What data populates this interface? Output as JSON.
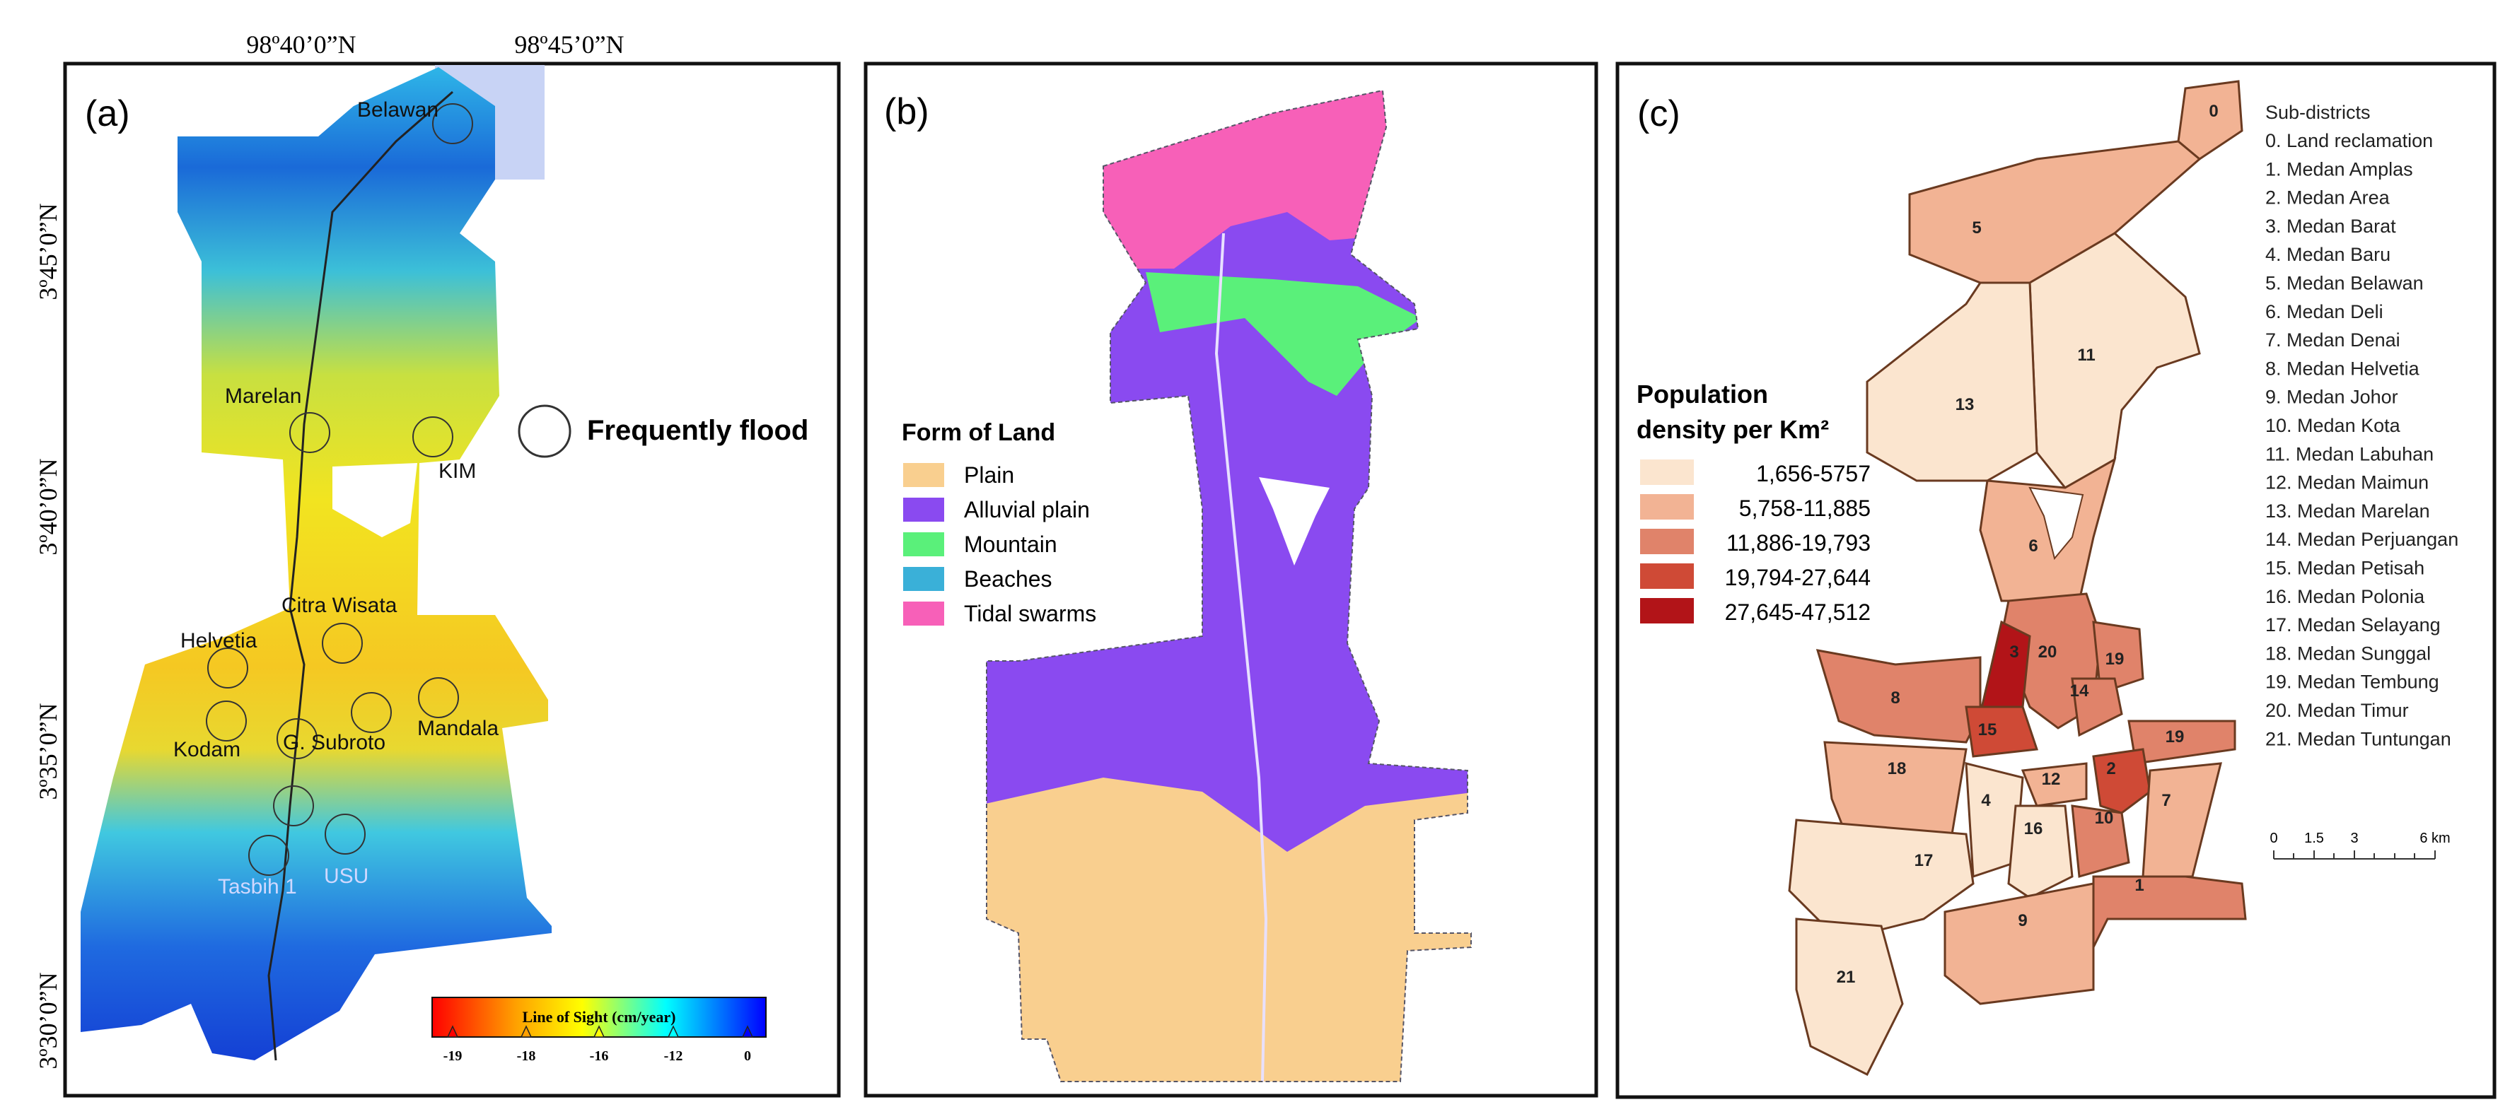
{
  "panel_a": {
    "label": "(a)",
    "lon_labels": [
      "98º40’0”N",
      "98º45’0”N"
    ],
    "lat_labels": [
      "3º45’0”N",
      "3º40’0”N",
      "3º35’0”N",
      "3º30’0”N"
    ],
    "places": [
      "Belawan",
      "Marelan",
      "KIM",
      "Citra Wisata",
      "Helvetia",
      "Kodam",
      "G. Subroto",
      "Mandala",
      "Tasbih 1",
      "USU"
    ],
    "flood_legend": "Frequently flood",
    "colorbar": {
      "title": "Line of Sight (cm/year)",
      "ticks": [
        "-19",
        "-18",
        "-16",
        "-12",
        "0"
      ],
      "colors": [
        "#ff0000",
        "#ffa000",
        "#ffff00",
        "#00ffff",
        "#0000ff"
      ]
    }
  },
  "panel_b": {
    "label": "(b)",
    "legend_title": "Form of Land",
    "items": [
      {
        "label": "Plain",
        "color": "#f9cf8f"
      },
      {
        "label": "Alluvial plain",
        "color": "#8a4af0"
      },
      {
        "label": "Mountain",
        "color": "#5af07a"
      },
      {
        "label": "Beaches",
        "color": "#3ab0d8"
      },
      {
        "label": "Tidal swarms",
        "color": "#f760b8"
      }
    ]
  },
  "panel_c": {
    "label": "(c)",
    "legend_title_1": "Population",
    "legend_title_2": "density per Km²",
    "classes": [
      {
        "label": "1,656-5757",
        "color": "#fbe5cf"
      },
      {
        "label": "5,758-11,885",
        "color": "#f2b394"
      },
      {
        "label": "11,886-19,793",
        "color": "#e0836a"
      },
      {
        "label": "19,794-27,644",
        "color": "#cf4a36"
      },
      {
        "label": "27,645-47,512",
        "color": "#b21418"
      }
    ],
    "subdistricts_title": "Sub-districts",
    "subdistricts": [
      "0. Land reclamation",
      "1. Medan Amplas",
      "2. Medan Area",
      "3. Medan Barat",
      "4. Medan Baru",
      "5. Medan Belawan",
      "6. Medan Deli",
      "7. Medan Denai",
      "8. Medan Helvetia",
      "9. Medan Johor",
      "10. Medan Kota",
      "11. Medan Labuhan",
      "12. Medan Maimun",
      "13. Medan Marelan",
      "14. Medan Perjuangan",
      "15. Medan Petisah",
      "16. Medan Polonia",
      "17. Medan Selayang",
      "18. Medan Sunggal",
      "19. Medan Tembung",
      "20. Medan Timur",
      "21. Medan Tuntungan"
    ],
    "districts": [
      {
        "id": "0",
        "class": 1
      },
      {
        "id": "5",
        "class": 1
      },
      {
        "id": "11",
        "class": 0
      },
      {
        "id": "13",
        "class": 0
      },
      {
        "id": "6",
        "class": 1
      },
      {
        "id": "20",
        "class": 2
      },
      {
        "id": "19",
        "class": 2
      },
      {
        "id": "14",
        "class": 2
      },
      {
        "id": "3",
        "class": 4
      },
      {
        "id": "8",
        "class": 2
      },
      {
        "id": "15",
        "class": 3
      },
      {
        "id": "19",
        "class": 2
      },
      {
        "id": "2",
        "class": 3
      },
      {
        "id": "18",
        "class": 1
      },
      {
        "id": "12",
        "class": 1
      },
      {
        "id": "4",
        "class": 0
      },
      {
        "id": "16",
        "class": 0
      },
      {
        "id": "10",
        "class": 2
      },
      {
        "id": "7",
        "class": 1
      },
      {
        "id": "17",
        "class": 0
      },
      {
        "id": "1",
        "class": 2
      },
      {
        "id": "9",
        "class": 1
      },
      {
        "id": "21",
        "class": 0
      }
    ],
    "scale_labels": [
      "0",
      "1.5",
      "3",
      "6 km"
    ]
  }
}
